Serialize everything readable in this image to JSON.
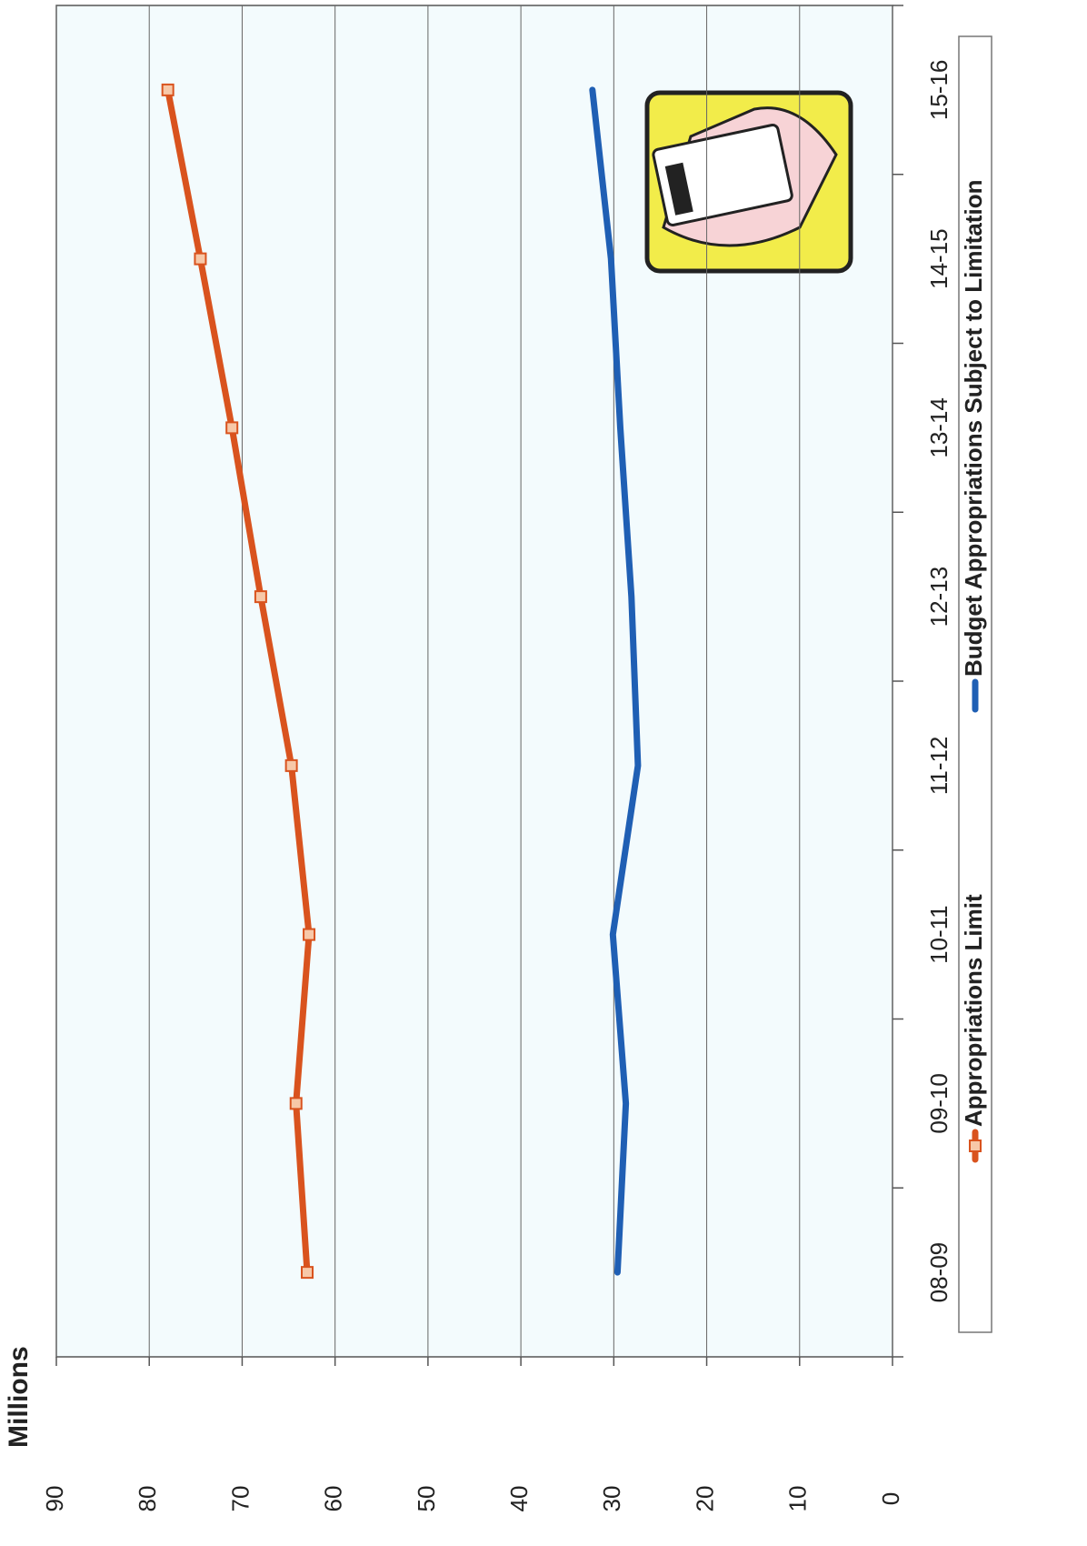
{
  "chart_data": {
    "type": "line",
    "y_label": "Millions",
    "categories": [
      "08-09",
      "09-10",
      "10-11",
      "11-12",
      "12-13",
      "13-14",
      "14-15",
      "15-16"
    ],
    "series": [
      {
        "name": "Appropriations Limit",
        "color": "#d9531e",
        "marker": "square",
        "values": [
          63.0,
          64.2,
          62.8,
          64.7,
          68.0,
          71.1,
          74.5,
          78.0
        ]
      },
      {
        "name": "Budget Appropriations Subject to Limitation",
        "color": "#1f5fb4",
        "values": [
          29.6,
          28.7,
          30.1,
          27.4,
          28.1,
          29.3,
          30.3,
          32.3
        ]
      }
    ],
    "ylim": [
      0,
      90
    ],
    "yticks": [
      0,
      10,
      20,
      30,
      40,
      50,
      60,
      70,
      80,
      90
    ],
    "grid": true
  }
}
